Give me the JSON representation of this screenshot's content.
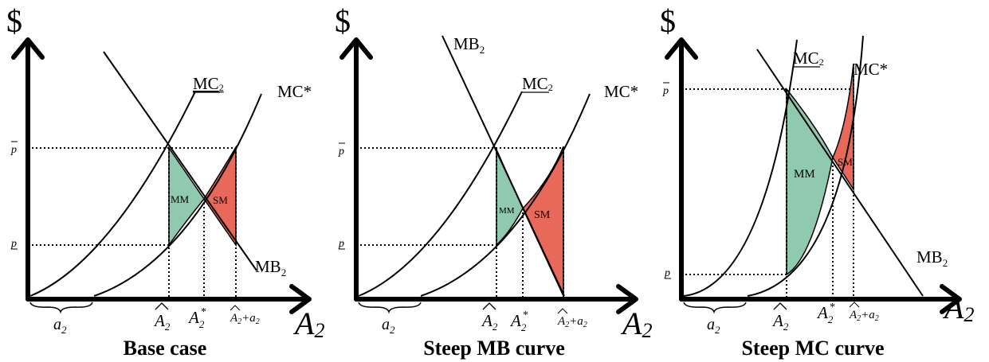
{
  "colors": {
    "mm_fill": "#8fc9ae",
    "sm_fill": "#e8695a",
    "line": "#000000"
  },
  "panels": [
    {
      "caption": "Base case",
      "axis_y": "$",
      "axis_x": "A",
      "axis_x_sub": "2",
      "tick_p_bar": "p",
      "tick_p_under": "p",
      "label_a2": "a",
      "label_a2_sub": "2",
      "label_Ahat": "A",
      "label_Ahat_sub": "2",
      "label_Astar": "A",
      "label_Astar_sub": "2",
      "label_Astar_sup": "*",
      "label_Ahat_plus": "A",
      "label_Ahat_plus_sub": "2",
      "label_Ahat_plus_rest": "+a",
      "label_Ahat_plus_rest_sub": "2",
      "curve_MC2": "MC",
      "curve_MC2_sub": "2",
      "curve_MCstar": "MC*",
      "curve_MB2": "MB",
      "curve_MB2_sub": "2",
      "region_MM": "MM",
      "region_SM": "SM"
    },
    {
      "caption": "Steep MB curve",
      "axis_y": "$",
      "axis_x": "A",
      "axis_x_sub": "2",
      "tick_p_bar": "p",
      "tick_p_under": "p",
      "label_a2": "a",
      "label_a2_sub": "2",
      "label_Ahat": "A",
      "label_Ahat_sub": "2",
      "label_Astar": "A",
      "label_Astar_sub": "2",
      "label_Astar_sup": "*",
      "label_Ahat_plus": "A",
      "label_Ahat_plus_sub": "2",
      "label_Ahat_plus_rest": "+a",
      "label_Ahat_plus_rest_sub": "2",
      "curve_MC2": "MC",
      "curve_MC2_sub": "2",
      "curve_MCstar": "MC*",
      "curve_MB2": "MB",
      "curve_MB2_sub": "2",
      "region_MM": "MM",
      "region_SM": "SM"
    },
    {
      "caption": "Steep MC curve",
      "axis_y": "$",
      "axis_x": "A",
      "axis_x_sub": "2",
      "tick_p_bar": "p",
      "tick_p_under": "p",
      "label_a2": "a",
      "label_a2_sub": "2",
      "label_Ahat": "A",
      "label_Ahat_sub": "2",
      "label_Astar": "A",
      "label_Astar_sub": "2",
      "label_Astar_sup": "*",
      "label_Ahat_plus": "A",
      "label_Ahat_plus_sub": "2",
      "label_Ahat_plus_rest": "+a",
      "label_Ahat_plus_rest_sub": "2",
      "curve_MC2": "MC",
      "curve_MC2_sub": "2",
      "curve_MCstar": "MC*",
      "curve_MB2": "MB",
      "curve_MB2_sub": "2",
      "region_MM": "MM",
      "region_SM": "SM"
    }
  ]
}
